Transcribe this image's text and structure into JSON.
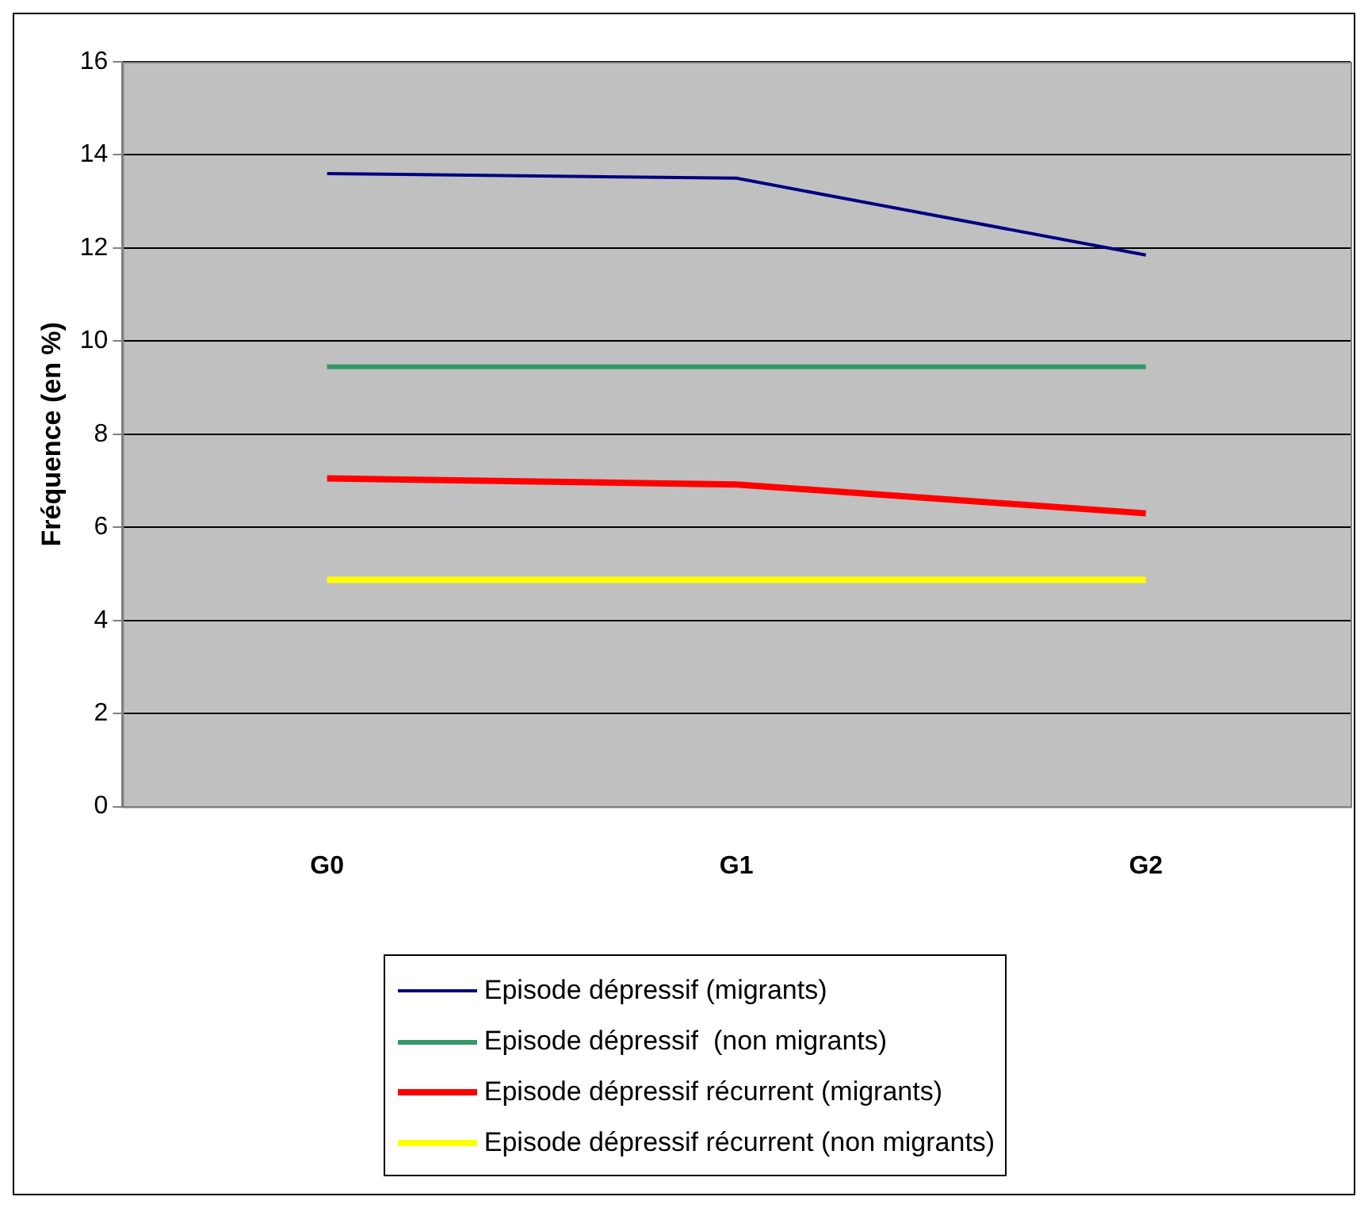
{
  "chart_data": {
    "type": "line",
    "ylabel": "Fréquence (en %)",
    "categories": [
      "G0",
      "G1",
      "G2"
    ],
    "series": [
      {
        "name": "Episode dépressif (migrants)",
        "color": "#000080",
        "values": [
          13.6,
          13.5,
          11.85
        ]
      },
      {
        "name": "Episode dépressif  (non migrants)",
        "color": "#339966",
        "values": [
          9.45,
          9.45,
          9.45
        ]
      },
      {
        "name": "Episode dépressif récurrent (migrants)",
        "color": "#ff0000",
        "values": [
          7.05,
          6.92,
          6.3
        ]
      },
      {
        "name": "Episode dépressif récurrent (non migrants)",
        "color": "#ffff00",
        "values": [
          4.87,
          4.87,
          4.87
        ]
      }
    ],
    "ylim": [
      0,
      16
    ],
    "yticks": [
      0,
      2,
      4,
      6,
      8,
      10,
      12,
      14,
      16
    ],
    "grid": "y",
    "legend": "bottom",
    "marker": "none",
    "line_style": "solid"
  }
}
